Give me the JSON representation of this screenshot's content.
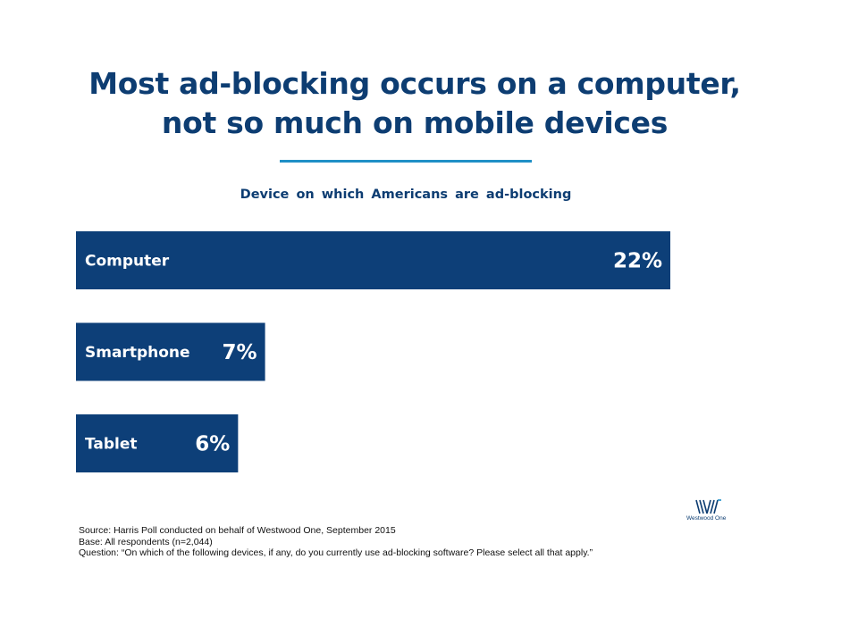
{
  "title_lines": [
    "Most ad-blocking occurs on a computer,",
    "not so much on mobile devices"
  ],
  "subtitle": "Device on which Americans are ad-blocking",
  "accent_color": "#1f8fc6",
  "bar_color": "#0d3f78",
  "title_color": "#0d3d72",
  "chart_data": {
    "type": "bar",
    "orientation": "horizontal",
    "title": "Device on which Americans are ad-blocking",
    "categories": [
      "Computer",
      "Smartphone",
      "Tablet"
    ],
    "values": [
      22,
      7,
      6
    ],
    "value_labels": [
      "22%",
      "7%",
      "6%"
    ],
    "unit": "%",
    "xlim": [
      0,
      22
    ],
    "grid": false,
    "legend": "none"
  },
  "footnotes": {
    "source": "Source: Harris Poll conducted on behalf of Westwood One, September 2015",
    "base": "Base: All respondents (n=2,044)",
    "question": "Question: “On which of the following devices, if any, do you currently use ad-blocking software? Please select all that apply.”"
  },
  "logo": {
    "text": "Westwood One",
    "icon": "westwood-one-logo-icon"
  }
}
